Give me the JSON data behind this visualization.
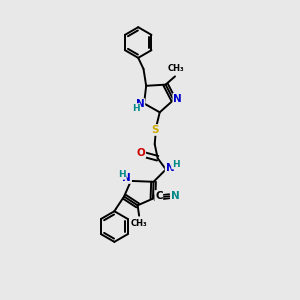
{
  "background_color": "#e8e8e8",
  "figure_size": [
    3.0,
    3.0
  ],
  "dpi": 100,
  "bond_color": "#000000",
  "bond_width": 1.4,
  "atom_colors": {
    "N": "#0000cc",
    "O": "#cc0000",
    "S": "#ccaa00",
    "C": "#000000",
    "H": "#008888",
    "CN_c": "#008888"
  },
  "font_size_atoms": 7.5,
  "font_size_small": 6.5,
  "font_size_methyl": 6.0
}
